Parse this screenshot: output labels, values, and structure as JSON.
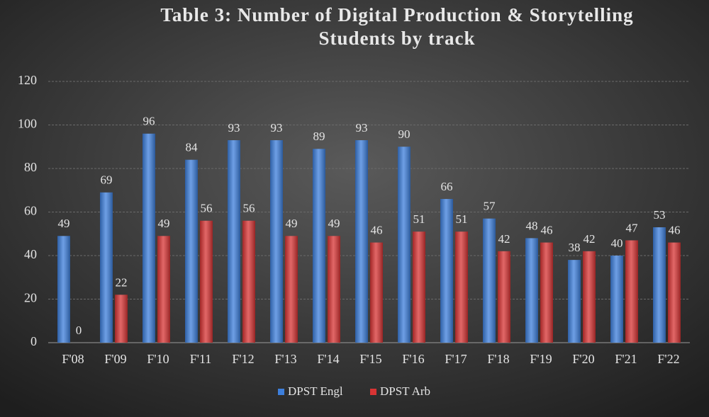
{
  "chart_data": {
    "type": "bar",
    "title": [
      "Table 3: Number of Digital Production & Storytelling",
      "Students by track"
    ],
    "categories": [
      "F'08",
      "F'09",
      "F'10",
      "F'11",
      "F'12",
      "F'13",
      "F'14",
      "F'15",
      "F'16",
      "F'17",
      "F'18",
      "F'19",
      "F'20",
      "F'21",
      "F'22"
    ],
    "series": [
      {
        "name": "DPST Engl",
        "color": "#3d7fdc",
        "values": [
          49,
          69,
          96,
          84,
          93,
          93,
          89,
          93,
          90,
          66,
          57,
          48,
          38,
          40,
          53
        ]
      },
      {
        "name": "DPST Arb",
        "color": "#d83434",
        "values": [
          0,
          22,
          49,
          56,
          56,
          49,
          49,
          46,
          51,
          51,
          42,
          46,
          42,
          47,
          46
        ]
      }
    ],
    "ylim": [
      0,
      120
    ],
    "yticks": [
      0,
      20,
      40,
      60,
      80,
      100,
      120
    ],
    "grid": true,
    "legend": "bottom"
  }
}
